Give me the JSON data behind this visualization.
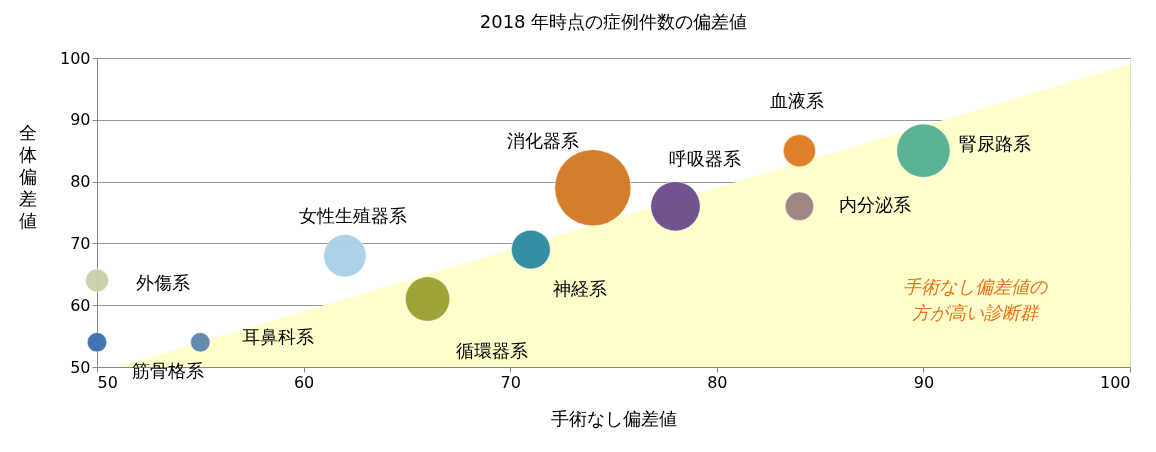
{
  "chart_data": {
    "type": "bubble",
    "title": "2018 年時点の症例件数の偏差値",
    "xlabel": "手術なし偏差値",
    "ylabel": "全体偏差値",
    "xlim": [
      50,
      100
    ],
    "xticks": [
      50,
      60,
      70,
      80,
      90,
      100
    ],
    "ylim": [
      50,
      100
    ],
    "yticks": [
      50,
      60,
      70,
      80,
      90,
      100
    ],
    "grid": "y",
    "legend": false,
    "series": [
      {
        "type": "area",
        "color": "#ffffcc",
        "x": [
          51,
          100
        ],
        "values": [
          50,
          99
        ]
      },
      {
        "type": "bubble",
        "x": [
          50,
          55,
          50,
          62,
          66,
          71,
          74,
          78,
          84,
          84,
          90
        ],
        "values": [
          54,
          54,
          64,
          68,
          61,
          69,
          79,
          76,
          85,
          76,
          85
        ],
        "sizes": [
          0.065,
          0.065,
          0.09,
          0.31,
          0.34,
          0.26,
          1,
          0.42,
          0.18,
          0.14,
          0.49
        ],
        "colors": [
          "#3a6cb0",
          "#5a86a8",
          "#c8d0a8",
          "#a8d0e8",
          "#9aa030",
          "#2a8aa0",
          "#d07820",
          "#6a4a8a",
          "#e07a20",
          "#9a8080",
          "#50b090"
        ]
      }
    ],
    "annotations": [
      {
        "text": "筋骨格系",
        "x": 50,
        "y": 54
      },
      {
        "text": "耳鼻科系",
        "x": 55,
        "y": 54
      },
      {
        "text": "外傷系",
        "x": 50,
        "y": 64
      },
      {
        "text": "女性生殖器系",
        "x": 62,
        "y": 68
      },
      {
        "text": "循環器系",
        "x": 66,
        "y": 61
      },
      {
        "text": "神経系",
        "x": 71,
        "y": 69
      },
      {
        "text": "消化器系",
        "x": 74,
        "y": 79
      },
      {
        "text": "呼吸器系",
        "x": 78,
        "y": 76
      },
      {
        "text": "血液系",
        "x": 84,
        "y": 85
      },
      {
        "text": "内分泌系",
        "x": 84,
        "y": 76
      },
      {
        "text": "腎尿路系",
        "x": 90,
        "y": 85
      },
      "手術なし偏差値の方が高い診断群"
    ]
  }
}
